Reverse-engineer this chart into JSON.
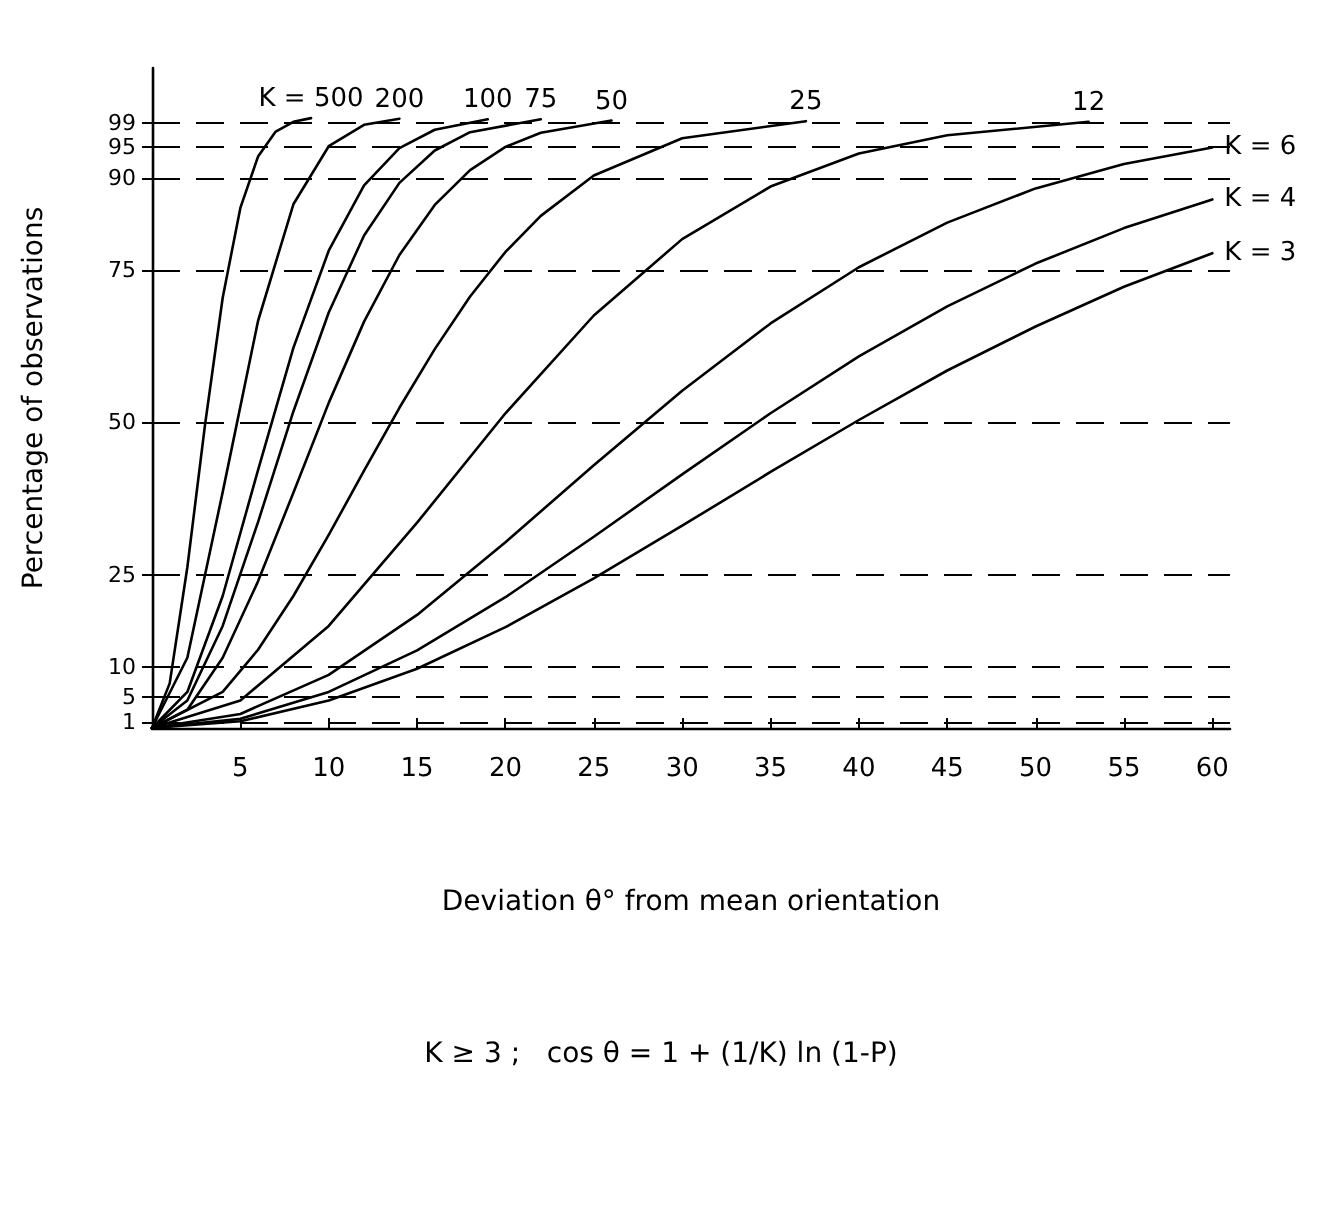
{
  "chart_data": {
    "type": "line",
    "xlabel": "Deviation θ° from mean orientation",
    "ylabel": "Percentage of observations",
    "annotations": [
      "K ≥ 3 ;   cos θ = 1 + (1/K) ln (1-P)"
    ],
    "xlim": [
      0,
      61
    ],
    "xticks": [
      5,
      10,
      15,
      20,
      25,
      30,
      35,
      40,
      45,
      50,
      55,
      60
    ],
    "ylim": [
      0,
      108
    ],
    "yticks": [
      1,
      5,
      10,
      25,
      50,
      75,
      90,
      95,
      99
    ],
    "grid": "y",
    "marker": "none",
    "line_style": "solid",
    "legend": false,
    "series": [
      {
        "name": "K = 500",
        "color": "#000000",
        "x": [
          0,
          1,
          2,
          3,
          4,
          5,
          6,
          7,
          8,
          9
        ],
        "values": [
          0,
          7.3,
          26.3,
          49.6,
          70.4,
          85.1,
          93.5,
          97.6,
          99.2,
          99.8
        ]
      },
      {
        "name": "200",
        "color": "#000000",
        "x": [
          0,
          2,
          4,
          6,
          8,
          10,
          12,
          14
        ],
        "values": [
          0,
          11.5,
          38.6,
          66.6,
          85.7,
          95.2,
          98.7,
          99.7
        ]
      },
      {
        "name": "100",
        "color": "#000000",
        "x": [
          0,
          2,
          4,
          6,
          8,
          10,
          12,
          14,
          16,
          19
        ],
        "values": [
          0,
          5.9,
          21.6,
          42.2,
          62.2,
          78.1,
          88.8,
          94.9,
          97.9,
          99.6
        ]
      },
      {
        "name": "75",
        "color": "#000000",
        "x": [
          0,
          2,
          4,
          6,
          8,
          10,
          12,
          14,
          16,
          18,
          22
        ],
        "values": [
          0,
          4.5,
          16.7,
          33.7,
          51.8,
          68.0,
          80.6,
          89.2,
          94.5,
          97.5,
          99.6
        ]
      },
      {
        "name": "50",
        "color": "#000000",
        "x": [
          0,
          2,
          4,
          6,
          8,
          10,
          12,
          14,
          16,
          18,
          20,
          22,
          26
        ],
        "values": [
          0,
          3.0,
          11.5,
          24.0,
          38.5,
          53.2,
          66.5,
          77.4,
          85.6,
          91.3,
          95.1,
          97.4,
          99.4
        ]
      },
      {
        "name": "25",
        "color": "#000000",
        "x": [
          0,
          4,
          6,
          8,
          10,
          12,
          14,
          16,
          18,
          20,
          22,
          25,
          30,
          37
        ],
        "values": [
          0,
          5.9,
          12.8,
          21.6,
          31.6,
          42.1,
          52.4,
          62.0,
          70.6,
          77.9,
          83.8,
          90.4,
          96.5,
          99.3
        ]
      },
      {
        "name": "12",
        "color": "#000000",
        "x": [
          0,
          5,
          10,
          15,
          20,
          25,
          30,
          35,
          40,
          45,
          53
        ],
        "values": [
          0,
          4.5,
          16.7,
          33.6,
          51.5,
          67.5,
          80.0,
          88.6,
          94.0,
          97.0,
          99.2
        ]
      },
      {
        "name": "K = 6",
        "color": "#000000",
        "x": [
          0,
          5,
          10,
          15,
          20,
          25,
          30,
          35,
          40,
          45,
          50,
          55,
          60
        ],
        "values": [
          0,
          2.3,
          8.7,
          18.5,
          30.4,
          43.0,
          55.2,
          66.2,
          75.4,
          82.7,
          88.3,
          92.3,
          95.0
        ]
      },
      {
        "name": "K = 4",
        "color": "#000000",
        "x": [
          0,
          5,
          10,
          15,
          20,
          25,
          30,
          35,
          40,
          45,
          50,
          55,
          60
        ],
        "values": [
          0,
          1.5,
          5.9,
          12.7,
          21.4,
          31.3,
          41.5,
          51.5,
          60.8,
          69.0,
          76.0,
          81.8,
          86.5
        ]
      },
      {
        "name": "K = 3",
        "color": "#000000",
        "x": [
          0,
          5,
          10,
          15,
          20,
          25,
          30,
          35,
          40,
          45,
          50,
          55,
          60
        ],
        "values": [
          0,
          1.1,
          4.5,
          9.7,
          16.5,
          24.5,
          33.1,
          41.9,
          50.4,
          58.5,
          65.7,
          72.2,
          77.7
        ]
      }
    ]
  }
}
